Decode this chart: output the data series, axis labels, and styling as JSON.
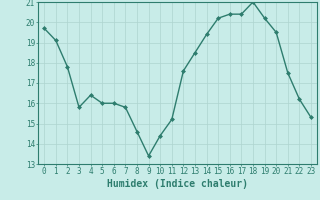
{
  "x": [
    0,
    1,
    2,
    3,
    4,
    5,
    6,
    7,
    8,
    9,
    10,
    11,
    12,
    13,
    14,
    15,
    16,
    17,
    18,
    19,
    20,
    21,
    22,
    23
  ],
  "y": [
    19.7,
    19.1,
    17.8,
    15.8,
    16.4,
    16.0,
    16.0,
    15.8,
    14.6,
    13.4,
    14.4,
    15.2,
    17.6,
    18.5,
    19.4,
    20.2,
    20.4,
    20.4,
    21.0,
    20.2,
    19.5,
    17.5,
    16.2,
    15.3
  ],
  "line_color": "#2e7d6e",
  "marker": "D",
  "marker_size": 2,
  "bg_color": "#c8ece8",
  "grid_color": "#aed4cf",
  "grid_minor_color": "#bcdedd",
  "xlabel": "Humidex (Indice chaleur)",
  "ylim": [
    13,
    21
  ],
  "xlim": [
    -0.5,
    23.5
  ],
  "yticks": [
    13,
    14,
    15,
    16,
    17,
    18,
    19,
    20,
    21
  ],
  "xticks": [
    0,
    1,
    2,
    3,
    4,
    5,
    6,
    7,
    8,
    9,
    10,
    11,
    12,
    13,
    14,
    15,
    16,
    17,
    18,
    19,
    20,
    21,
    22,
    23
  ],
  "xlabel_fontsize": 7,
  "tick_fontsize": 5.5,
  "line_width": 1.0
}
